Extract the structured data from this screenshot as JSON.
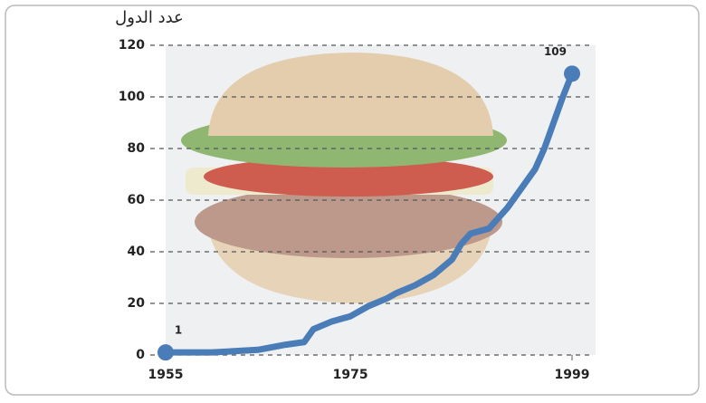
{
  "chart_data": {
    "type": "line",
    "title": "عدد الدول",
    "x": [
      1955,
      1960,
      1965,
      1968,
      1970,
      1971,
      1973,
      1975,
      1977,
      1979,
      1980,
      1982,
      1984,
      1986,
      1987,
      1988,
      1990,
      1992,
      1993,
      1995,
      1996,
      1997,
      1998,
      1999
    ],
    "series": [
      {
        "color": "#4a7db8",
        "values": [
          1,
          1,
          2,
          4,
          5,
          10,
          13,
          15,
          19,
          22,
          24,
          27,
          31,
          37,
          43,
          47,
          49,
          57,
          62,
          72,
          80,
          90,
          100,
          109
        ]
      }
    ],
    "annotations": [
      "1",
      "109"
    ],
    "xlim": [
      1955,
      1999
    ],
    "xticks": [
      1955,
      1975,
      1999
    ],
    "ylim": [
      0,
      120
    ],
    "yticks": [
      0,
      20,
      40,
      60,
      80,
      100,
      120
    ],
    "grid": true
  }
}
